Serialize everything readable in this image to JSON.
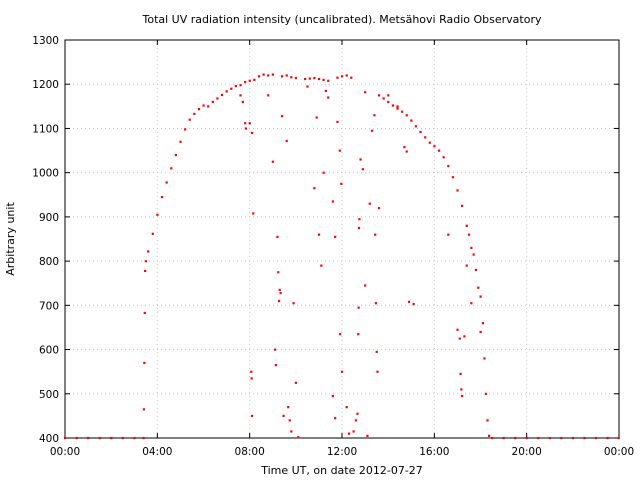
{
  "chart_data": {
    "type": "scatter",
    "title": "Total UV radiation intensity (uncalibrated). Metsähovi Radio Observatory",
    "xlabel": "Time UT, on date 2012-07-27",
    "ylabel": "Arbitrary unit",
    "xlim": [
      "00:00",
      "24:00"
    ],
    "ylim": [
      400,
      1300
    ],
    "xticks": [
      "00:00",
      "04:00",
      "08:00",
      "12:00",
      "16:00",
      "20:00",
      "00:00"
    ],
    "yticks": [
      400,
      500,
      600,
      700,
      800,
      900,
      1000,
      1100,
      1200,
      1300
    ],
    "grid": true,
    "point_color": "#ff0000",
    "series": [
      {
        "points": [
          [
            "00:00",
            400
          ],
          [
            "00:30",
            400
          ],
          [
            "01:00",
            400
          ],
          [
            "01:30",
            400
          ],
          [
            "02:00",
            400
          ],
          [
            "02:30",
            400
          ],
          [
            "03:00",
            400
          ],
          [
            "03:24",
            400
          ],
          [
            "03:25",
            465
          ],
          [
            "03:26",
            570
          ],
          [
            "03:27",
            683
          ],
          [
            "03:28",
            778
          ],
          [
            "03:30",
            800
          ],
          [
            "03:36",
            822
          ],
          [
            "03:48",
            862
          ],
          [
            "04:00",
            905
          ],
          [
            "04:12",
            945
          ],
          [
            "04:24",
            978
          ],
          [
            "04:36",
            1010
          ],
          [
            "04:48",
            1040
          ],
          [
            "05:00",
            1070
          ],
          [
            "05:12",
            1098
          ],
          [
            "05:24",
            1120
          ],
          [
            "05:36",
            1133
          ],
          [
            "05:48",
            1144
          ],
          [
            "06:00",
            1152
          ],
          [
            "06:12",
            1150
          ],
          [
            "06:24",
            1160
          ],
          [
            "06:36",
            1168
          ],
          [
            "06:48",
            1176
          ],
          [
            "07:00",
            1184
          ],
          [
            "07:12",
            1190
          ],
          [
            "07:24",
            1196
          ],
          [
            "07:36",
            1198
          ],
          [
            "07:48",
            1205
          ],
          [
            "08:00",
            1208
          ],
          [
            "08:12",
            1210
          ],
          [
            "08:24",
            1218
          ],
          [
            "08:36",
            1222
          ],
          [
            "08:48",
            1220
          ],
          [
            "09:00",
            1222
          ],
          [
            "09:24",
            1218
          ],
          [
            "09:36",
            1220
          ],
          [
            "09:48",
            1216
          ],
          [
            "10:00",
            1214
          ],
          [
            "10:24",
            1212
          ],
          [
            "10:36",
            1213
          ],
          [
            "10:48",
            1214
          ],
          [
            "11:00",
            1212
          ],
          [
            "11:12",
            1210
          ],
          [
            "11:24",
            1208
          ],
          [
            "11:48",
            1215
          ],
          [
            "12:00",
            1218
          ],
          [
            "13:00",
            1182
          ],
          [
            "13:36",
            1175
          ],
          [
            "13:48",
            1168
          ],
          [
            "14:00",
            1160
          ],
          [
            "14:12",
            1152
          ],
          [
            "14:24",
            1145
          ],
          [
            "14:36",
            1138
          ],
          [
            "14:48",
            1130
          ],
          [
            "15:00",
            1118
          ],
          [
            "15:12",
            1105
          ],
          [
            "15:24",
            1092
          ],
          [
            "15:36",
            1080
          ],
          [
            "15:48",
            1068
          ],
          [
            "16:00",
            1060
          ],
          [
            "16:12",
            1050
          ],
          [
            "16:24",
            1035
          ],
          [
            "16:36",
            1015
          ],
          [
            "16:48",
            990
          ],
          [
            "17:00",
            960
          ],
          [
            "17:12",
            925
          ],
          [
            "17:24",
            880
          ],
          [
            "17:30",
            860
          ],
          [
            "17:36",
            830
          ],
          [
            "17:42",
            815
          ],
          [
            "17:48",
            780
          ],
          [
            "17:54",
            740
          ],
          [
            "18:00",
            720
          ],
          [
            "18:06",
            660
          ],
          [
            "18:10",
            580
          ],
          [
            "18:14",
            500
          ],
          [
            "18:18",
            440
          ],
          [
            "18:22",
            405
          ],
          [
            "18:30",
            400
          ],
          [
            "19:00",
            400
          ],
          [
            "19:30",
            400
          ],
          [
            "20:00",
            400
          ],
          [
            "20:30",
            400
          ],
          [
            "21:00",
            400
          ],
          [
            "21:30",
            400
          ],
          [
            "22:00",
            400
          ],
          [
            "22:30",
            400
          ],
          [
            "23:00",
            400
          ],
          [
            "23:30",
            400
          ],
          [
            "23:59",
            400
          ],
          [
            "07:36",
            1175
          ],
          [
            "07:42",
            1160
          ],
          [
            "07:48",
            1112
          ],
          [
            "07:50",
            1100
          ],
          [
            "08:00",
            1112
          ],
          [
            "08:06",
            1090
          ],
          [
            "08:09",
            908
          ],
          [
            "08:04",
            550
          ],
          [
            "08:05",
            535
          ],
          [
            "08:06",
            450
          ],
          [
            "08:48",
            1175
          ],
          [
            "09:00",
            1025
          ],
          [
            "09:12",
            855
          ],
          [
            "09:14",
            775
          ],
          [
            "09:18",
            735
          ],
          [
            "09:20",
            728
          ],
          [
            "09:06",
            600
          ],
          [
            "09:08",
            565
          ],
          [
            "09:16",
            710
          ],
          [
            "09:24",
            1128
          ],
          [
            "09:36",
            1072
          ],
          [
            "09:28",
            450
          ],
          [
            "09:40",
            470
          ],
          [
            "09:44",
            440
          ],
          [
            "09:48",
            415
          ],
          [
            "09:54",
            705
          ],
          [
            "10:00",
            525
          ],
          [
            "10:06",
            402
          ],
          [
            "10:30",
            1195
          ],
          [
            "10:48",
            965
          ],
          [
            "10:54",
            1125
          ],
          [
            "11:00",
            860
          ],
          [
            "11:06",
            790
          ],
          [
            "11:12",
            1000
          ],
          [
            "11:18",
            1185
          ],
          [
            "11:24",
            1170
          ],
          [
            "11:36",
            935
          ],
          [
            "11:42",
            855
          ],
          [
            "11:36",
            495
          ],
          [
            "11:42",
            445
          ],
          [
            "11:48",
            1115
          ],
          [
            "11:54",
            1050
          ],
          [
            "11:58",
            975
          ],
          [
            "11:55",
            635
          ],
          [
            "12:00",
            550
          ],
          [
            "12:12",
            1220
          ],
          [
            "12:24",
            1215
          ],
          [
            "12:12",
            470
          ],
          [
            "12:18",
            410
          ],
          [
            "12:30",
            415
          ],
          [
            "12:36",
            440
          ],
          [
            "12:40",
            455
          ],
          [
            "12:42",
            635
          ],
          [
            "12:43",
            695
          ],
          [
            "12:44",
            875
          ],
          [
            "12:45",
            895
          ],
          [
            "12:48",
            1030
          ],
          [
            "12:54",
            1008
          ],
          [
            "13:00",
            745
          ],
          [
            "13:06",
            405
          ],
          [
            "13:12",
            930
          ],
          [
            "13:18",
            1095
          ],
          [
            "13:24",
            1130
          ],
          [
            "13:26",
            860
          ],
          [
            "13:28",
            705
          ],
          [
            "13:30",
            595
          ],
          [
            "13:32",
            550
          ],
          [
            "13:36",
            920
          ],
          [
            "14:00",
            1175
          ],
          [
            "14:42",
            1058
          ],
          [
            "14:48",
            1048
          ],
          [
            "14:54",
            708
          ],
          [
            "15:06",
            703
          ],
          [
            "14:24",
            1150
          ],
          [
            "16:36",
            860
          ],
          [
            "17:00",
            645
          ],
          [
            "17:06",
            625
          ],
          [
            "17:08",
            545
          ],
          [
            "17:10",
            510
          ],
          [
            "17:12",
            495
          ],
          [
            "17:18",
            630
          ],
          [
            "17:24",
            790
          ],
          [
            "17:36",
            705
          ],
          [
            "18:00",
            640
          ]
        ]
      }
    ]
  }
}
